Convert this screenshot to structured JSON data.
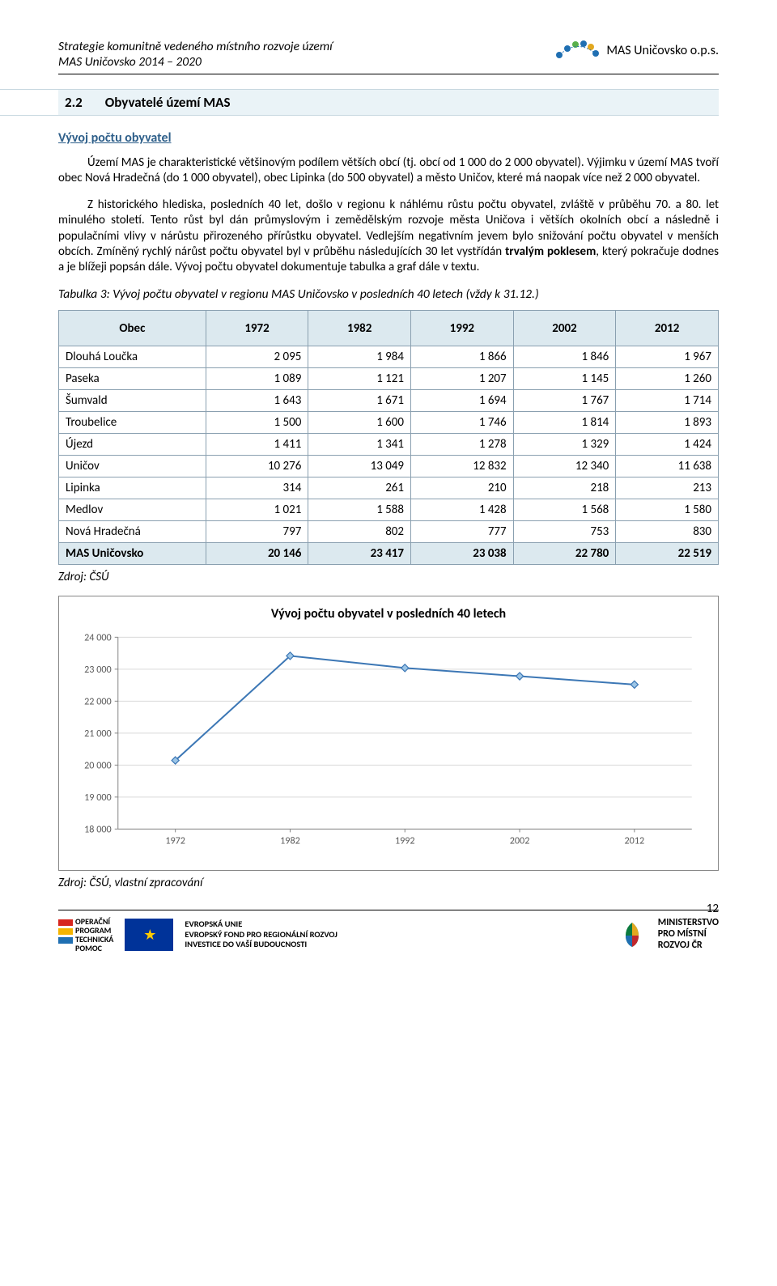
{
  "header": {
    "line1": "Strategie komunitně vedeného místního rozvoje území",
    "line2": "MAS Uničovsko 2014 – 2020",
    "logo_label": "MAS Uničovsko o.p.s.",
    "logo_dot_colors": [
      "#1f6fb2",
      "#1f6fb2",
      "#59b04a",
      "#1f6fb2",
      "#e2a81f",
      "#1f6fb2",
      "#1f6fb2"
    ]
  },
  "section": {
    "number": "2.2",
    "title": "Obyvatelé území MAS",
    "band_bg": "#eaf3f7",
    "band_border": "#c8d8e0"
  },
  "subheading": {
    "text": "Vývoj počtu obyvatel",
    "color": "#2e5f8a"
  },
  "paragraphs": {
    "p1": "Území MAS je charakteristické většinovým podílem větších obcí (tj. obcí od 1 000 do 2 000 obyvatel). Výjimku v území MAS tvoří obec Nová Hradečná (do 1 000 obyvatel), obec Lipinka (do 500 obyvatel) a město Uničov, které má naopak více než 2 000 obyvatel.",
    "p2": "Z historického hlediska, posledních 40 let, došlo v regionu k náhlému růstu počtu obyvatel, zvláště v průběhu 70. a 80. let minulého století. Tento růst byl dán průmyslovým i zemědělským rozvoje města Uničova i větších okolních obcí a následně i populačními vlivy v nárůstu přirozeného přírůstku obyvatel. Vedlejším negativním jevem bylo snižování počtu obyvatel v menších obcích. Zmíněný rychlý nárůst počtu obyvatel byl v průběhu následujících 30 let vystřídán trvalým poklesem, který pokračuje dodnes a je blížeji popsán dále. Vývoj počtu obyvatel dokumentuje tabulka a graf dále v textu.",
    "p2_bold": "trvalým poklesem"
  },
  "table": {
    "caption": "Tabulka 3: Vývoj počtu obyvatel v regionu MAS Uničovsko v posledních 40 letech (vždy k 31.12.)",
    "headers": [
      "Obec",
      "1972",
      "1982",
      "1992",
      "2002",
      "2012"
    ],
    "header_bg": "#dce9ef",
    "border_color": "#8aa0b0",
    "rows": [
      {
        "label": "Dlouhá Loučka",
        "v": [
          "2 095",
          "1 984",
          "1 866",
          "1 846",
          "1 967"
        ]
      },
      {
        "label": "Paseka",
        "v": [
          "1 089",
          "1 121",
          "1 207",
          "1 145",
          "1 260"
        ]
      },
      {
        "label": "Šumvald",
        "v": [
          "1 643",
          "1 671",
          "1 694",
          "1 767",
          "1 714"
        ]
      },
      {
        "label": "Troubelice",
        "v": [
          "1 500",
          "1 600",
          "1 746",
          "1 814",
          "1 893"
        ]
      },
      {
        "label": "Újezd",
        "v": [
          "1 411",
          "1 341",
          "1 278",
          "1 329",
          "1 424"
        ]
      },
      {
        "label": "Uničov",
        "v": [
          "10 276",
          "13 049",
          "12 832",
          "12 340",
          "11 638"
        ]
      },
      {
        "label": "Lipinka",
        "v": [
          "314",
          "261",
          "210",
          "218",
          "213"
        ]
      },
      {
        "label": "Medlov",
        "v": [
          "1 021",
          "1 588",
          "1 428",
          "1 568",
          "1 580"
        ]
      },
      {
        "label": "Nová Hradečná",
        "v": [
          "797",
          "802",
          "777",
          "753",
          "830"
        ]
      }
    ],
    "total": {
      "label": "MAS Uničovsko",
      "v": [
        "20 146",
        "23 417",
        "23 038",
        "22 780",
        "22 519"
      ]
    },
    "source": "Zdroj: ČSÚ"
  },
  "chart": {
    "type": "line",
    "title": "Vývoj počtu obyvatel v posledních 40 letech",
    "title_fontsize": 16,
    "x_categories": [
      "1972",
      "1982",
      "1992",
      "2002",
      "2012"
    ],
    "y_values": [
      20146,
      23417,
      23038,
      22780,
      22519
    ],
    "ylim": [
      18000,
      24000
    ],
    "ytick_step": 1000,
    "ytick_labels": [
      "18 000",
      "19 000",
      "20 000",
      "21 000",
      "22 000",
      "23 000",
      "24 000"
    ],
    "line_color": "#3c77b5",
    "line_width": 2,
    "marker_shape": "diamond",
    "marker_size": 9,
    "marker_fill": "#9cc5e6",
    "marker_stroke": "#3c77b5",
    "grid_color": "#d9d9d9",
    "axis_color": "#868686",
    "tick_font_color": "#595959",
    "background_color": "#ffffff",
    "box_border": "#868686",
    "source": "Zdroj: ČSÚ, vlastní zpracování"
  },
  "footer": {
    "op": {
      "line1": "OPERAČNÍ",
      "line2": "PROGRAM",
      "line3": "TECHNICKÁ",
      "line4": "POMOC",
      "bar_colors": [
        "#d7261f",
        "#f4b400",
        "#1f6fb2"
      ]
    },
    "eu": {
      "line1": "EVROPSKÁ UNIE",
      "line2": "EVROPSKÝ FOND PRO REGIONÁLNÍ ROZVOJ",
      "line3": "INVESTICE DO VAŠÍ BUDOUCNOSTI",
      "flag_bg": "#003399",
      "flag_star": "#ffcc00"
    },
    "mmr": {
      "line1": "MINISTERSTVO",
      "line2": "PRO MÍSTNÍ",
      "line3": "ROZVOJ ČR",
      "icon_colors": [
        "#0b7a3e",
        "#e2a81f",
        "#c1272d",
        "#1f6fb2"
      ]
    },
    "page_number": "12"
  }
}
